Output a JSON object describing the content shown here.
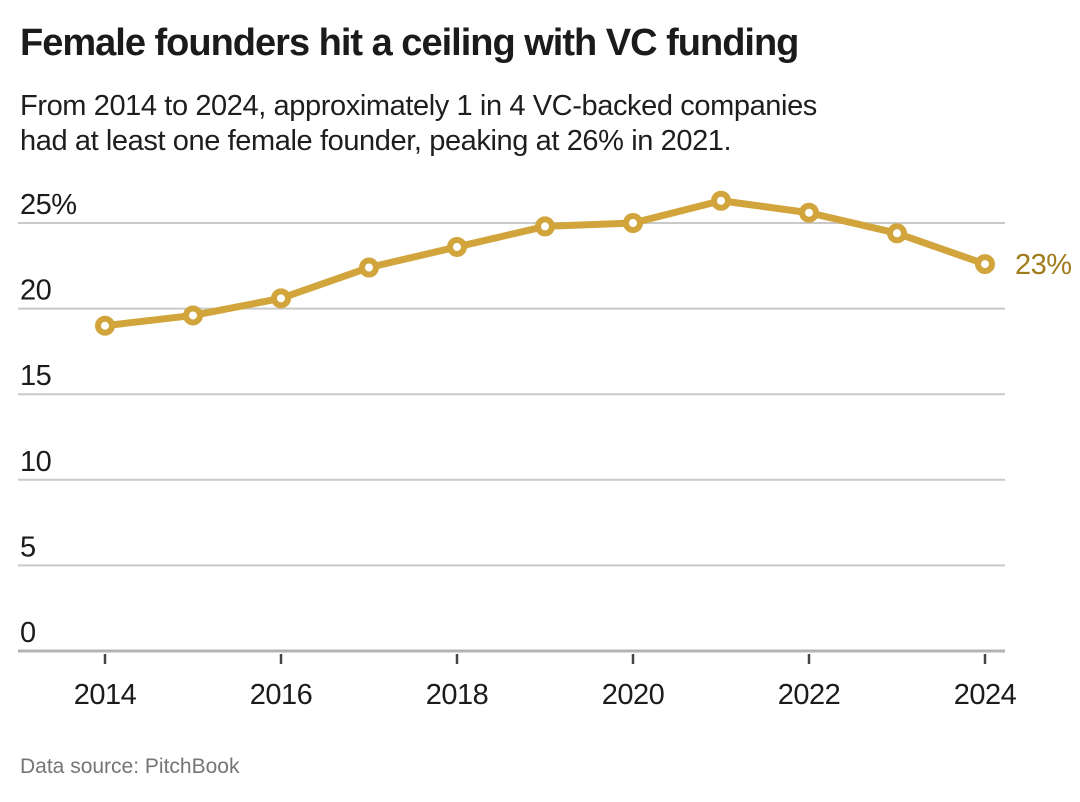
{
  "header": {
    "title": "Female founders hit a ceiling with VC funding",
    "subtitle_lines": [
      "From 2014 to 2024, approximately 1 in 4 VC-backed companies",
      "had at least one female founder, peaking at 26% in 2021."
    ]
  },
  "footer": {
    "source": "Data source: PitchBook"
  },
  "chart_data": {
    "type": "line",
    "title": "Female founders hit a ceiling with VC funding",
    "subtitle": "From 2014 to 2024, approximately 1 in 4 VC-backed companies had at least one female founder, peaking at 26% in 2021.",
    "x": [
      2014,
      2015,
      2016,
      2017,
      2018,
      2019,
      2020,
      2021,
      2022,
      2023,
      2024
    ],
    "values": [
      19.0,
      19.6,
      20.6,
      22.4,
      23.6,
      24.8,
      25.0,
      26.3,
      25.6,
      24.4,
      22.6
    ],
    "end_label": "23%",
    "y_ticks": {
      "values": [
        0,
        5,
        10,
        15,
        20,
        25
      ],
      "labels": [
        "0",
        "5",
        "10",
        "15",
        "20",
        "25%"
      ]
    },
    "x_tick_years": [
      2014,
      2016,
      2018,
      2020,
      2022,
      2024
    ],
    "xlabel": "",
    "ylabel": "",
    "ylim": [
      0,
      27.5
    ],
    "grid": "horizontal",
    "legend": "none",
    "marker_style": "open-circle",
    "colors": {
      "line": "#d1a53c",
      "end_label": "#a07c1c",
      "gridline": "#c9c9c9",
      "axis_line": "#b3b3b3",
      "tick": "#444444",
      "tick_label": "#1b1b1b"
    }
  }
}
